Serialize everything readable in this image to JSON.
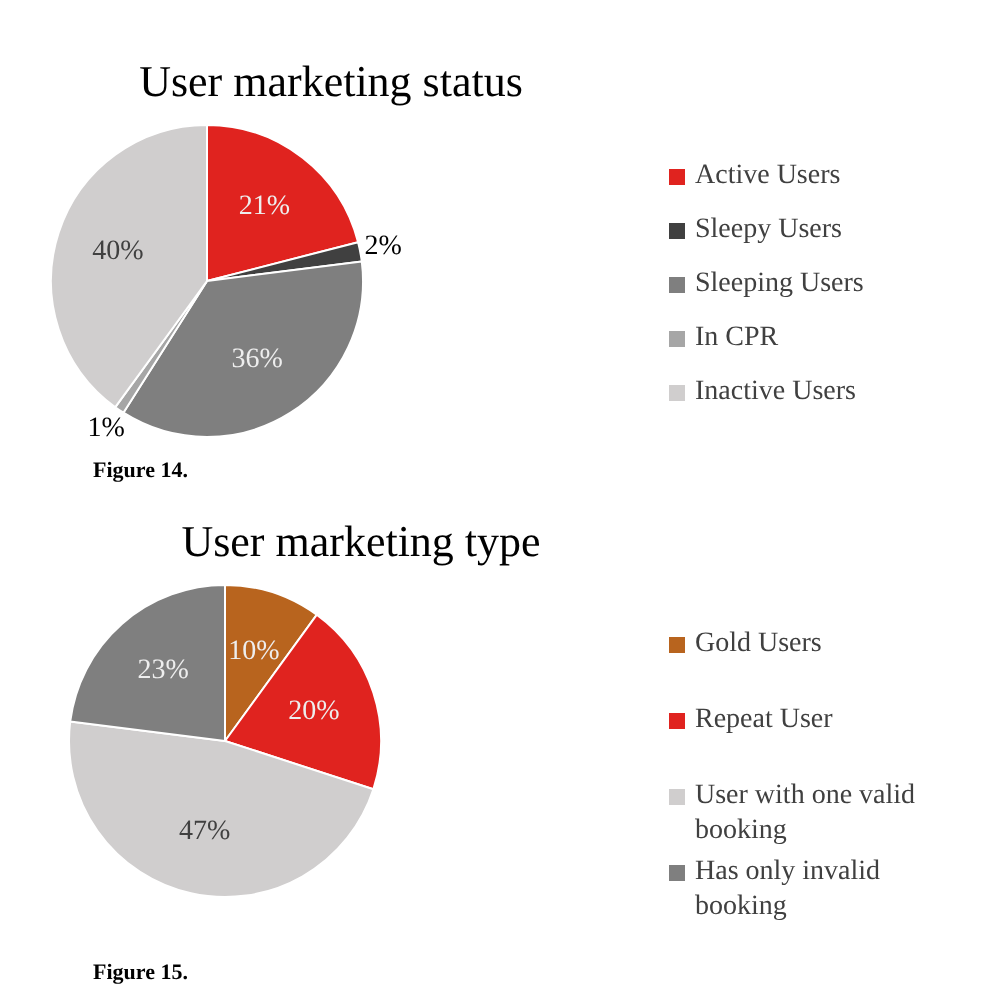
{
  "chart_data": [
    {
      "type": "pie",
      "title": "User marketing status",
      "categories": [
        "Active Users",
        "Sleepy Users",
        "Sleeping Users",
        "In CPR",
        "Inactive Users"
      ],
      "values": [
        21,
        2,
        36,
        1,
        40
      ],
      "colors": [
        "#e0231f",
        "#404040",
        "#7f7f7f",
        "#a6a6a6",
        "#d0cece"
      ],
      "value_labels": [
        "21%",
        "2%",
        "36%",
        "1%",
        "40%"
      ],
      "legend": "right",
      "annotations": [
        "Figure  14."
      ]
    },
    {
      "type": "pie",
      "title": "User marketing type",
      "categories": [
        "Gold Users",
        "Repeat User",
        "User with one valid booking",
        "Has only invalid booking"
      ],
      "values": [
        10,
        20,
        47,
        23
      ],
      "colors": [
        "#b8641e",
        "#e0231f",
        "#d0cece",
        "#7f7f7f"
      ],
      "value_labels": [
        "10%",
        "20%",
        "47%",
        "23%"
      ],
      "legend": "right",
      "annotations": [
        "Figure  15."
      ]
    }
  ]
}
